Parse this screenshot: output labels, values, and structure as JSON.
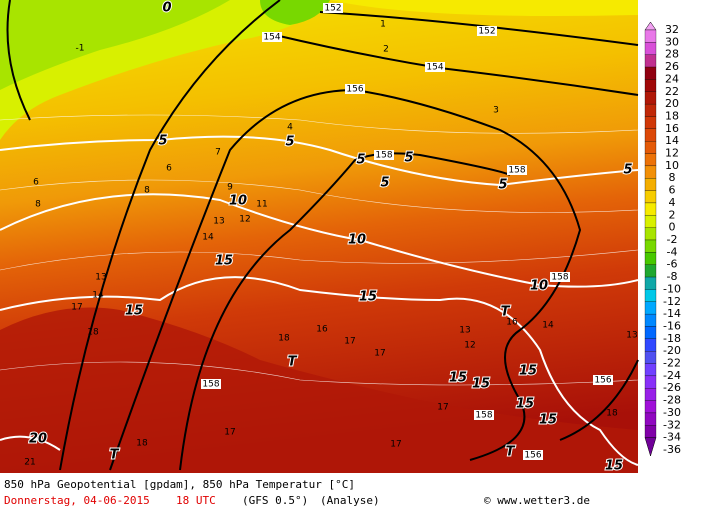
{
  "map": {
    "height_labels": [
      "152",
      "152",
      "154",
      "154",
      "156",
      "158",
      "158",
      "158",
      "158",
      "158",
      "156",
      "156"
    ],
    "isotherm_labels": [
      "0",
      "5",
      "5",
      "5",
      "5",
      "5",
      "5",
      "5",
      "10",
      "10",
      "10",
      "15",
      "15",
      "15",
      "15",
      "15",
      "15",
      "15",
      "15",
      "15",
      "20"
    ],
    "high_low_labels": [
      "T",
      "T",
      "T",
      "T"
    ],
    "point_labels": [
      "1",
      "2",
      "3",
      "4",
      "6",
      "7",
      "8",
      "9",
      "11",
      "12",
      "13",
      "14",
      "13",
      "14",
      "16",
      "17",
      "18",
      "17",
      "18",
      "21",
      "18",
      "17",
      "-1",
      "6",
      "8",
      "12",
      "13",
      "16",
      "17",
      "14",
      "13",
      "17",
      "18",
      "17"
    ]
  },
  "colorbar": {
    "levels": [
      32,
      30,
      28,
      26,
      24,
      22,
      20,
      18,
      16,
      14,
      12,
      10,
      8,
      6,
      4,
      2,
      0,
      -2,
      -4,
      -6,
      -8,
      -10,
      -12,
      -14,
      -16,
      -18,
      -20,
      -22,
      -24,
      -26,
      -28,
      -30,
      -32,
      -34,
      -36
    ],
    "colors": [
      "#f2a0f2",
      "#e878e8",
      "#d850d8",
      "#c03090",
      "#900010",
      "#a00808",
      "#b01808",
      "#c02808",
      "#d03808",
      "#dc4808",
      "#e45a08",
      "#ec7208",
      "#f29008",
      "#f4ae00",
      "#f6cc00",
      "#f6ea00",
      "#d8f000",
      "#a8e400",
      "#78d800",
      "#48c800",
      "#20a830",
      "#10a8a8",
      "#00c8e8",
      "#00a8ff",
      "#0088ff",
      "#0068ff",
      "#3048ff",
      "#5050f0",
      "#7040ff",
      "#8830f8",
      "#9820e8",
      "#a010d8",
      "#9008c0",
      "#8000a8",
      "#700098"
    ]
  },
  "footer": {
    "line1": "850 hPa Geopotential [gpdam], 850 hPa Temperatur [°C]",
    "date": "Donnerstag, 04-06-2015",
    "time": "18 UTC",
    "model": "(GFS 0.5°)",
    "run": "(Analyse)",
    "credit": "© www.wetter3.de"
  }
}
